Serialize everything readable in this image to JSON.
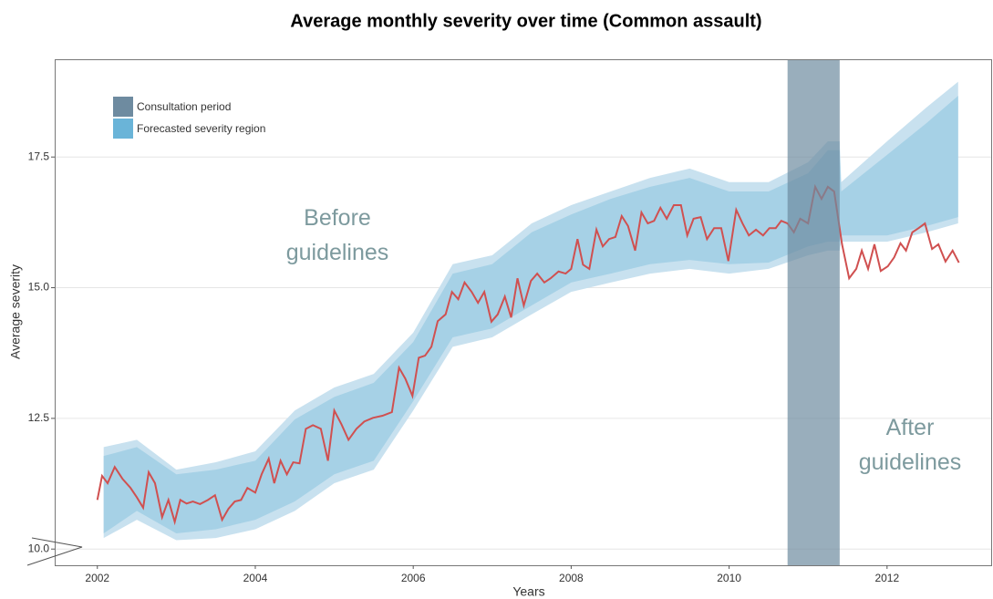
{
  "chart_data": {
    "type": "line",
    "title": "Average monthly severity over time (Common assault)",
    "x_label": "Years",
    "y_label": "Average severity",
    "xlim": [
      2001.46,
      2013.33
    ],
    "ylim": [
      9.69,
      19.37
    ],
    "xticks": [
      2002,
      2004,
      2006,
      2008,
      2010,
      2012
    ],
    "yticks": [
      {
        "value": 10,
        "label": "10.0"
      },
      12.5,
      {
        "value": 15,
        "label": "15.0"
      },
      17.5
    ],
    "grid": true,
    "line": {
      "color": "#d05050",
      "x": [
        2002.0,
        2002.06,
        2002.13,
        2002.22,
        2002.32,
        2002.42,
        2002.5,
        2002.58,
        2002.65,
        2002.73,
        2002.82,
        2002.9,
        2002.98,
        2003.05,
        2003.13,
        2003.21,
        2003.3,
        2003.4,
        2003.49,
        2003.58,
        2003.66,
        2003.74,
        2003.82,
        2003.9,
        2004.0,
        2004.08,
        2004.17,
        2004.24,
        2004.32,
        2004.4,
        2004.48,
        2004.56,
        2004.64,
        2004.73,
        2004.83,
        2004.92,
        2005.0,
        2005.09,
        2005.18,
        2005.28,
        2005.38,
        2005.49,
        2005.61,
        2005.73,
        2005.82,
        2005.9,
        2005.99,
        2006.07,
        2006.15,
        2006.23,
        2006.31,
        2006.41,
        2006.49,
        2006.57,
        2006.65,
        2006.74,
        2006.82,
        2006.9,
        2006.99,
        2007.07,
        2007.16,
        2007.24,
        2007.32,
        2007.4,
        2007.49,
        2007.57,
        2007.66,
        2007.74,
        2007.84,
        2007.93,
        2008.0,
        2008.08,
        2008.15,
        2008.23,
        2008.32,
        2008.4,
        2008.48,
        2008.56,
        2008.64,
        2008.72,
        2008.81,
        2008.89,
        2008.97,
        2009.05,
        2009.13,
        2009.21,
        2009.3,
        2009.39,
        2009.47,
        2009.55,
        2009.64,
        2009.72,
        2009.81,
        2009.9,
        2009.99,
        2010.09,
        2010.17,
        2010.25,
        2010.34,
        2010.43,
        2010.51,
        2010.59,
        2010.66,
        2010.74,
        2010.82,
        2010.9,
        2011.0,
        2011.09,
        2011.17,
        2011.25,
        2011.33,
        2011.43,
        2011.52,
        2011.61,
        2011.68,
        2011.76,
        2011.84,
        2011.92,
        2012.01,
        2012.09,
        2012.17,
        2012.24,
        2012.32,
        2012.4,
        2012.48,
        2012.57,
        2012.65,
        2012.74,
        2012.83,
        2012.91
      ],
      "values": [
        10.94,
        11.4,
        11.26,
        11.57,
        11.34,
        11.17,
        10.99,
        10.79,
        11.47,
        11.26,
        10.61,
        10.94,
        10.52,
        10.94,
        10.87,
        10.91,
        10.86,
        10.94,
        11.03,
        10.56,
        10.77,
        10.91,
        10.94,
        11.17,
        11.08,
        11.43,
        11.73,
        11.26,
        11.69,
        11.43,
        11.66,
        11.64,
        12.3,
        12.37,
        12.3,
        11.69,
        12.65,
        12.39,
        12.09,
        12.3,
        12.44,
        12.51,
        12.55,
        12.62,
        13.47,
        13.26,
        12.93,
        13.66,
        13.7,
        13.87,
        14.36,
        14.49,
        14.92,
        14.78,
        15.1,
        14.92,
        14.71,
        14.92,
        14.35,
        14.49,
        14.83,
        14.43,
        15.18,
        14.66,
        15.13,
        15.27,
        15.1,
        15.18,
        15.31,
        15.27,
        15.36,
        15.93,
        15.44,
        15.36,
        16.11,
        15.79,
        15.93,
        15.97,
        16.37,
        16.18,
        15.71,
        16.44,
        16.23,
        16.28,
        16.53,
        16.32,
        16.58,
        16.58,
        16.0,
        16.32,
        16.35,
        15.93,
        16.14,
        16.14,
        15.51,
        16.49,
        16.23,
        16.0,
        16.11,
        16.0,
        16.14,
        16.14,
        16.28,
        16.23,
        16.06,
        16.32,
        16.23,
        16.93,
        16.7,
        16.93,
        16.84,
        15.83,
        15.18,
        15.36,
        15.71,
        15.36,
        15.83,
        15.32,
        15.41,
        15.58,
        15.85,
        15.71,
        16.06,
        16.14,
        16.23,
        15.74,
        15.83,
        15.5,
        15.71,
        15.48
      ]
    },
    "bands": {
      "name": "Forecasted severity region",
      "color": "#6ab4d8",
      "outer_color": "#c8e1ef",
      "inner_color": "#a6d1e6",
      "x": [
        2002.08,
        2002.5,
        2003.0,
        2003.5,
        2004.0,
        2004.5,
        2005.0,
        2005.5,
        2006.0,
        2006.5,
        2007.0,
        2007.5,
        2008.0,
        2008.5,
        2009.0,
        2009.5,
        2010.0,
        2010.5,
        2011.0,
        2011.25,
        2011.4,
        2011.42,
        2012.0,
        2012.5,
        2012.9
      ],
      "outer_upper": [
        11.95,
        12.09,
        11.52,
        11.66,
        11.87,
        12.65,
        13.09,
        13.35,
        14.14,
        15.45,
        15.62,
        16.23,
        16.58,
        16.84,
        17.1,
        17.28,
        17.02,
        17.02,
        17.4,
        17.8,
        17.8,
        17.02,
        17.8,
        18.45,
        18.94
      ],
      "outer_lower": [
        10.21,
        10.56,
        10.17,
        10.21,
        10.38,
        10.73,
        11.26,
        11.52,
        12.65,
        13.87,
        14.05,
        14.49,
        14.92,
        15.1,
        15.27,
        15.36,
        15.27,
        15.36,
        15.62,
        15.71,
        15.71,
        15.88,
        15.88,
        16.06,
        16.23
      ],
      "inner_upper": [
        11.78,
        11.95,
        11.43,
        11.52,
        11.69,
        12.48,
        12.91,
        13.18,
        13.96,
        15.27,
        15.45,
        16.06,
        16.4,
        16.7,
        16.93,
        17.1,
        16.84,
        16.84,
        17.19,
        17.63,
        17.63,
        16.84,
        17.54,
        18.15,
        18.67
      ],
      "inner_lower": [
        10.3,
        10.73,
        10.3,
        10.38,
        10.56,
        10.91,
        11.43,
        11.69,
        12.83,
        14.05,
        14.22,
        14.66,
        15.1,
        15.27,
        15.45,
        15.53,
        15.45,
        15.48,
        15.79,
        15.88,
        15.88,
        16.0,
        16.0,
        16.18,
        16.35
      ]
    },
    "shaded_region": {
      "name": "Consultation period",
      "color": "#6e8ba0",
      "xrange": [
        2010.74,
        2011.4
      ]
    },
    "annotations": [
      "Before guidelines",
      "After guidelines"
    ]
  }
}
